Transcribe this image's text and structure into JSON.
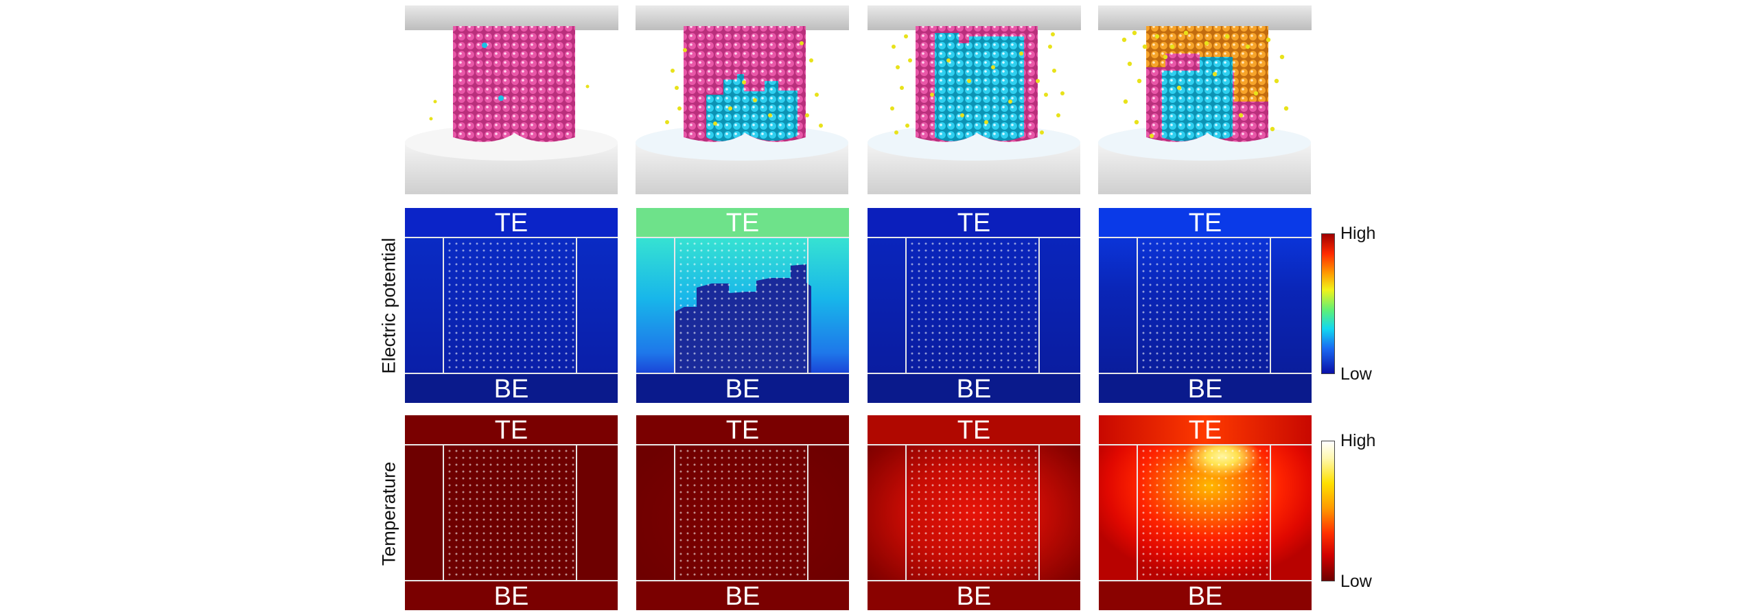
{
  "row_labels": {
    "electric_potential": "Electric potential",
    "temperature": "Temperature"
  },
  "electrode_labels": {
    "top": "TE",
    "bottom": "BE"
  },
  "colorbars": {
    "potential": {
      "high": "High",
      "low": "Low"
    },
    "temperature": {
      "high": "High",
      "low": "Low"
    }
  },
  "colors": {
    "atom_pink": "#e0459a",
    "atom_cyan": "#19c2e6",
    "atom_yellow": "#e8e21a",
    "atom_orange": "#f29a1c",
    "potential_low": "#0a1a9a",
    "potential_high": "#d40000",
    "temperature_low": "#6e0000",
    "temperature_high": "#ffffff"
  },
  "panels": [
    {
      "id": "stage-1",
      "potential_state": "uniform-low",
      "temperature_state": "uniform-low"
    },
    {
      "id": "stage-2",
      "potential_state": "partial-filament",
      "temperature_state": "uniform-low"
    },
    {
      "id": "stage-3",
      "potential_state": "uniform-low",
      "temperature_state": "moderate"
    },
    {
      "id": "stage-4",
      "potential_state": "near-low",
      "temperature_state": "hot-spot-top"
    }
  ]
}
